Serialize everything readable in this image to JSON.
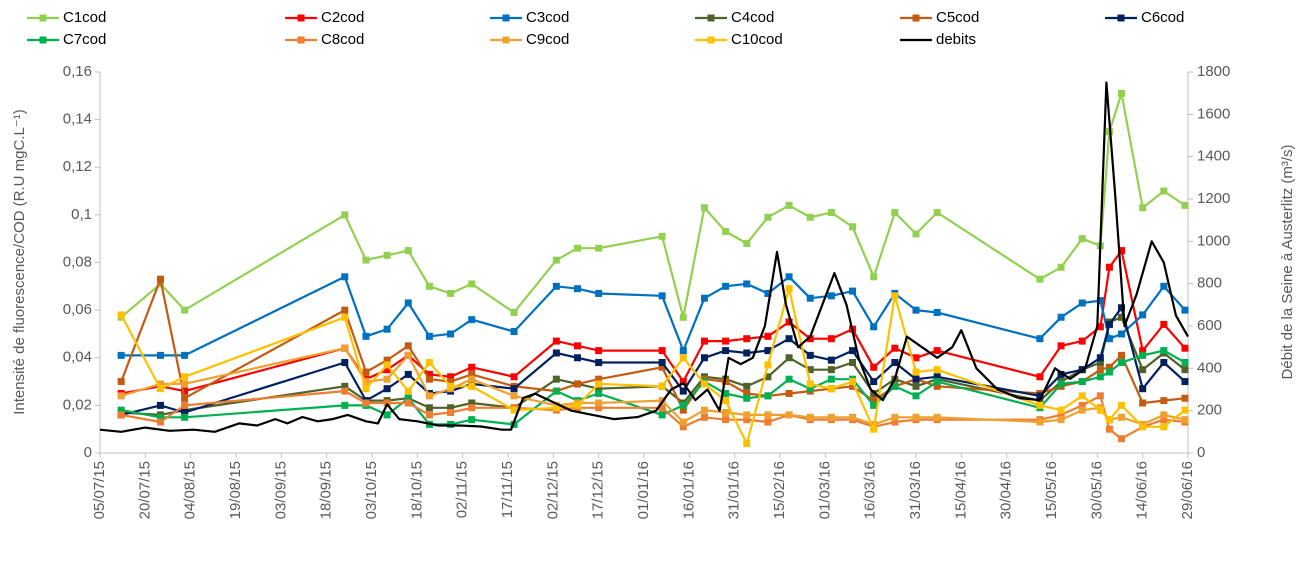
{
  "chart_data": {
    "type": "line",
    "ylabel": "Intensité de fluorescence/COD (R.U mgC.L⁻¹)",
    "y2label": "Débit de la Seine à Austerlitz (m³/s)",
    "xlim": [
      "2015-07-05",
      "2016-06-29"
    ],
    "xticks": [
      {
        "value": "2015-07-05",
        "label": "05/07/15"
      },
      {
        "value": "2015-07-20",
        "label": "20/07/15"
      },
      {
        "value": "2015-08-04",
        "label": "04/08/15"
      },
      {
        "value": "2015-08-19",
        "label": "19/08/15"
      },
      {
        "value": "2015-09-03",
        "label": "03/09/15"
      },
      {
        "value": "2015-09-18",
        "label": "18/09/15"
      },
      {
        "value": "2015-10-03",
        "label": "03/10/15"
      },
      {
        "value": "2015-10-18",
        "label": "18/10/15"
      },
      {
        "value": "2015-11-02",
        "label": "02/11/15"
      },
      {
        "value": "2015-11-17",
        "label": "17/11/15"
      },
      {
        "value": "2015-12-02",
        "label": "02/12/15"
      },
      {
        "value": "2015-12-17",
        "label": "17/12/15"
      },
      {
        "value": "2016-01-01",
        "label": "01/01/16"
      },
      {
        "value": "2016-01-16",
        "label": "16/01/16"
      },
      {
        "value": "2016-01-31",
        "label": "31/01/16"
      },
      {
        "value": "2016-02-15",
        "label": "15/02/16"
      },
      {
        "value": "2016-03-01",
        "label": "01/03/16"
      },
      {
        "value": "2016-03-16",
        "label": "16/03/16"
      },
      {
        "value": "2016-03-31",
        "label": "31/03/16"
      },
      {
        "value": "2016-04-15",
        "label": "15/04/16"
      },
      {
        "value": "2016-04-30",
        "label": "30/04/16"
      },
      {
        "value": "2016-05-15",
        "label": "15/05/16"
      },
      {
        "value": "2016-05-30",
        "label": "30/05/16"
      },
      {
        "value": "2016-06-14",
        "label": "14/06/16"
      },
      {
        "value": "2016-06-29",
        "label": "29/06/16"
      }
    ],
    "ylim": [
      0,
      0.16
    ],
    "yticks": [
      0,
      {
        "value": 0.02,
        "label": "0,02"
      },
      {
        "value": 0.04,
        "label": "0,04"
      },
      {
        "value": 0.06,
        "label": "0,06"
      },
      {
        "value": 0.08,
        "label": "0,08"
      },
      {
        "value": 0.1,
        "label": "0,1"
      },
      {
        "value": 0.12,
        "label": "0,12"
      },
      {
        "value": 0.14,
        "label": "0,14"
      },
      {
        "value": 0.16,
        "label": "0,16"
      }
    ],
    "y2lim": [
      0,
      1800
    ],
    "y2ticks": [
      0,
      200,
      400,
      600,
      800,
      1000,
      1200,
      1400,
      1600,
      1800
    ],
    "legend": "top",
    "x": [
      "2015-07-12",
      "2015-07-25",
      "2015-08-02",
      "2015-09-24",
      "2015-10-01",
      "2015-10-08",
      "2015-10-15",
      "2015-10-22",
      "2015-10-29",
      "2015-11-05",
      "2015-11-19",
      "2015-12-03",
      "2015-12-10",
      "2015-12-17",
      "2016-01-07",
      "2016-01-14",
      "2016-01-21",
      "2016-01-28",
      "2016-02-04",
      "2016-02-11",
      "2016-02-18",
      "2016-02-25",
      "2016-03-03",
      "2016-03-10",
      "2016-03-17",
      "2016-03-24",
      "2016-03-31",
      "2016-04-07",
      "2016-05-11",
      "2016-05-18",
      "2016-05-25",
      "2016-05-31",
      "2016-06-03",
      "2016-06-07",
      "2016-06-14",
      "2016-06-21",
      "2016-06-28"
    ],
    "series": [
      {
        "name": "C1cod",
        "color": "#92d050",
        "values": [
          0.057,
          0.071,
          0.06,
          0.1,
          0.081,
          0.083,
          0.085,
          0.07,
          0.067,
          0.071,
          0.059,
          0.081,
          0.086,
          0.086,
          0.091,
          0.057,
          0.103,
          0.093,
          0.088,
          0.099,
          0.104,
          0.099,
          0.101,
          0.095,
          0.074,
          0.101,
          0.092,
          0.101,
          0.073,
          0.078,
          0.09,
          0.087,
          0.135,
          0.151,
          0.103,
          0.11,
          0.104
        ]
      },
      {
        "name": "C2cod",
        "color": "#ff0000",
        "values": [
          0.025,
          0.028,
          0.026,
          0.044,
          0.031,
          0.035,
          0.041,
          0.033,
          0.032,
          0.036,
          0.032,
          0.047,
          0.045,
          0.043,
          0.043,
          0.03,
          0.047,
          0.047,
          0.048,
          0.049,
          0.055,
          0.048,
          0.048,
          0.052,
          0.036,
          0.044,
          0.04,
          0.043,
          0.032,
          0.045,
          0.047,
          0.053,
          0.078,
          0.085,
          0.043,
          0.054,
          0.044
        ]
      },
      {
        "name": "C3cod",
        "color": "#0070c0",
        "values": [
          0.041,
          0.041,
          0.041,
          0.074,
          0.049,
          0.052,
          0.063,
          0.049,
          0.05,
          0.056,
          0.051,
          0.07,
          0.069,
          0.067,
          0.066,
          0.043,
          0.065,
          0.07,
          0.071,
          0.067,
          0.074,
          0.065,
          0.066,
          0.068,
          0.053,
          0.067,
          0.06,
          0.059,
          0.048,
          0.057,
          0.063,
          0.064,
          0.048,
          0.05,
          0.058,
          0.07,
          0.06
        ]
      },
      {
        "name": "C4cod",
        "color": "#4f6228",
        "values": [
          0.017,
          0.016,
          0.018,
          0.028,
          0.022,
          0.022,
          0.023,
          0.019,
          0.019,
          0.021,
          0.019,
          0.031,
          0.029,
          0.027,
          0.028,
          0.021,
          0.032,
          0.031,
          0.028,
          0.032,
          0.04,
          0.035,
          0.035,
          0.038,
          0.025,
          0.031,
          0.028,
          0.031,
          0.022,
          0.03,
          0.035,
          0.038,
          0.055,
          0.057,
          0.035,
          0.042,
          0.035
        ]
      },
      {
        "name": "C5cod",
        "color": "#c55a11",
        "values": [
          0.03,
          0.073,
          0.023,
          0.06,
          0.034,
          0.039,
          0.045,
          0.031,
          0.03,
          0.033,
          0.028,
          0.026,
          0.029,
          0.031,
          0.036,
          0.018,
          0.031,
          0.03,
          0.025,
          0.024,
          0.025,
          0.026,
          0.027,
          0.028,
          0.022,
          0.028,
          0.031,
          0.028,
          0.025,
          0.028,
          0.03,
          0.035,
          0.036,
          0.041,
          0.021,
          0.022,
          0.023
        ]
      },
      {
        "name": "C6cod",
        "color": "#002060",
        "values": [
          0.016,
          0.02,
          0.017,
          0.038,
          0.022,
          0.027,
          0.033,
          0.025,
          0.026,
          0.029,
          0.027,
          0.042,
          0.04,
          0.038,
          0.038,
          0.026,
          0.04,
          0.043,
          0.042,
          0.043,
          0.048,
          0.041,
          0.039,
          0.043,
          0.03,
          0.038,
          0.031,
          0.032,
          0.024,
          0.033,
          0.035,
          0.04,
          0.054,
          0.061,
          0.027,
          0.038,
          0.03
        ]
      },
      {
        "name": "C7cod",
        "color": "#00b050",
        "values": [
          0.018,
          0.015,
          0.015,
          0.02,
          0.02,
          0.016,
          0.023,
          0.012,
          0.012,
          0.014,
          0.012,
          0.026,
          0.022,
          0.025,
          0.016,
          0.02,
          0.03,
          0.025,
          0.023,
          0.024,
          0.031,
          0.027,
          0.031,
          0.031,
          0.02,
          0.028,
          0.024,
          0.03,
          0.019,
          0.029,
          0.03,
          0.032,
          0.034,
          0.038,
          0.041,
          0.043,
          0.038
        ]
      },
      {
        "name": "C8cod",
        "color": "#ed7d31",
        "values": [
          0.016,
          0.013,
          0.02,
          0.026,
          0.021,
          0.021,
          0.021,
          0.016,
          0.017,
          0.019,
          0.019,
          0.018,
          0.019,
          0.019,
          0.019,
          0.011,
          0.015,
          0.014,
          0.014,
          0.013,
          0.016,
          0.014,
          0.014,
          0.014,
          0.011,
          0.013,
          0.014,
          0.014,
          0.014,
          0.016,
          0.02,
          0.024,
          0.01,
          0.006,
          0.011,
          0.014,
          0.013
        ]
      },
      {
        "name": "C9cod",
        "color": "#f0a030",
        "values": [
          0.024,
          0.029,
          0.029,
          0.044,
          0.03,
          0.031,
          0.041,
          0.024,
          0.027,
          0.031,
          0.024,
          0.02,
          0.021,
          0.021,
          0.022,
          0.013,
          0.018,
          0.017,
          0.016,
          0.016,
          0.016,
          0.015,
          0.015,
          0.015,
          0.012,
          0.015,
          0.015,
          0.015,
          0.013,
          0.014,
          0.018,
          0.019,
          0.014,
          0.015,
          0.012,
          0.016,
          0.014
        ]
      },
      {
        "name": "C10cod",
        "color": "#ffc000",
        "values": [
          0.058,
          0.027,
          0.032,
          0.057,
          0.027,
          0.037,
          0.026,
          0.038,
          0.028,
          0.028,
          0.018,
          0.019,
          0.02,
          0.029,
          0.028,
          0.04,
          0.029,
          0.022,
          0.004,
          0.037,
          0.069,
          0.029,
          0.027,
          0.03,
          0.01,
          0.066,
          0.034,
          0.035,
          0.02,
          0.018,
          0.024,
          0.018,
          0.014,
          0.02,
          0.011,
          0.011,
          0.018
        ]
      },
      {
        "name": "debits",
        "color": "#000000",
        "axis": "y2",
        "x": [
          "2015-07-05",
          "2015-07-12",
          "2015-07-20",
          "2015-07-28",
          "2015-08-05",
          "2015-08-12",
          "2015-08-20",
          "2015-08-26",
          "2015-09-01",
          "2015-09-05",
          "2015-09-10",
          "2015-09-15",
          "2015-09-20",
          "2015-09-25",
          "2015-10-01",
          "2015-10-05",
          "2015-10-08",
          "2015-10-12",
          "2015-10-18",
          "2015-10-25",
          "2015-11-01",
          "2015-11-08",
          "2015-11-15",
          "2015-11-18",
          "2015-11-22",
          "2015-11-26",
          "2015-12-02",
          "2015-12-08",
          "2015-12-15",
          "2015-12-22",
          "2015-12-30",
          "2016-01-05",
          "2016-01-10",
          "2016-01-14",
          "2016-01-18",
          "2016-01-22",
          "2016-01-26",
          "2016-01-29",
          "2016-02-02",
          "2016-02-06",
          "2016-02-10",
          "2016-02-14",
          "2016-02-17",
          "2016-02-21",
          "2016-02-25",
          "2016-02-29",
          "2016-03-04",
          "2016-03-08",
          "2016-03-12",
          "2016-03-16",
          "2016-03-20",
          "2016-03-24",
          "2016-03-28",
          "2016-04-02",
          "2016-04-07",
          "2016-04-12",
          "2016-04-15",
          "2016-04-20",
          "2016-04-27",
          "2016-05-04",
          "2016-05-11",
          "2016-05-16",
          "2016-05-21",
          "2016-05-26",
          "2016-05-30",
          "2016-06-02",
          "2016-06-05",
          "2016-06-08",
          "2016-06-12",
          "2016-06-17",
          "2016-06-21",
          "2016-06-25",
          "2016-06-29"
        ],
        "values": [
          110,
          100,
          120,
          105,
          110,
          100,
          140,
          130,
          160,
          140,
          170,
          150,
          160,
          180,
          150,
          140,
          230,
          160,
          150,
          130,
          130,
          125,
          110,
          110,
          260,
          280,
          240,
          200,
          180,
          160,
          170,
          200,
          300,
          330,
          250,
          300,
          200,
          450,
          420,
          450,
          600,
          950,
          700,
          500,
          550,
          700,
          850,
          700,
          450,
          300,
          250,
          350,
          550,
          500,
          450,
          500,
          580,
          400,
          300,
          260,
          250,
          400,
          350,
          400,
          600,
          1750,
          1200,
          600,
          750,
          1000,
          900,
          650,
          550
        ]
      }
    ]
  }
}
